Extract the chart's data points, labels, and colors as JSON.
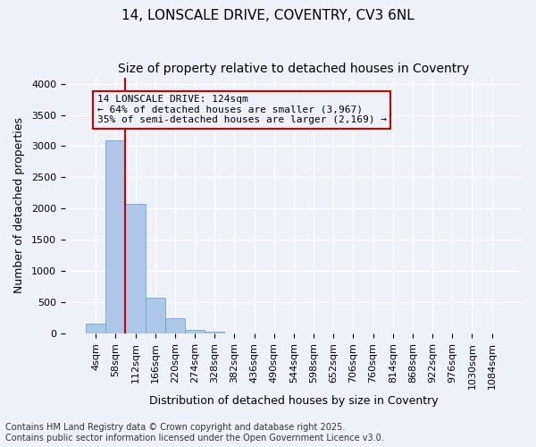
{
  "title_line1": "14, LONSCALE DRIVE, COVENTRY, CV3 6NL",
  "title_line2": "Size of property relative to detached houses in Coventry",
  "xlabel": "Distribution of detached houses by size in Coventry",
  "ylabel": "Number of detached properties",
  "bar_color": "#aec6e8",
  "bar_edge_color": "#5a9fd4",
  "background_color": "#eef2f8",
  "grid_color": "#ffffff",
  "annotation_box_color": "#cc0000",
  "vline_color": "#cc0000",
  "bins": [
    "4sqm",
    "58sqm",
    "112sqm",
    "166sqm",
    "220sqm",
    "274sqm",
    "328sqm",
    "382sqm",
    "436sqm",
    "490sqm",
    "544sqm",
    "598sqm",
    "652sqm",
    "706sqm",
    "760sqm",
    "814sqm",
    "868sqm",
    "922sqm",
    "976sqm",
    "1030sqm",
    "1084sqm"
  ],
  "values": [
    155,
    3100,
    2075,
    570,
    245,
    65,
    40,
    10,
    0,
    0,
    0,
    0,
    0,
    0,
    0,
    0,
    0,
    0,
    0,
    0,
    0
  ],
  "annotation_line1": "14 LONSCALE DRIVE: 124sqm",
  "annotation_line2": "← 64% of detached houses are smaller (3,967)",
  "annotation_line3": "35% of semi-detached houses are larger (2,169) →",
  "vline_x": 1.5,
  "ylim": [
    0,
    4100
  ],
  "yticks": [
    0,
    500,
    1000,
    1500,
    2000,
    2500,
    3000,
    3500,
    4000
  ],
  "footer_line1": "Contains HM Land Registry data © Crown copyright and database right 2025.",
  "footer_line2": "Contains public sector information licensed under the Open Government Licence v3.0.",
  "title_fontsize": 11,
  "subtitle_fontsize": 10,
  "axis_label_fontsize": 9,
  "tick_fontsize": 8,
  "annotation_fontsize": 8,
  "footer_fontsize": 7
}
